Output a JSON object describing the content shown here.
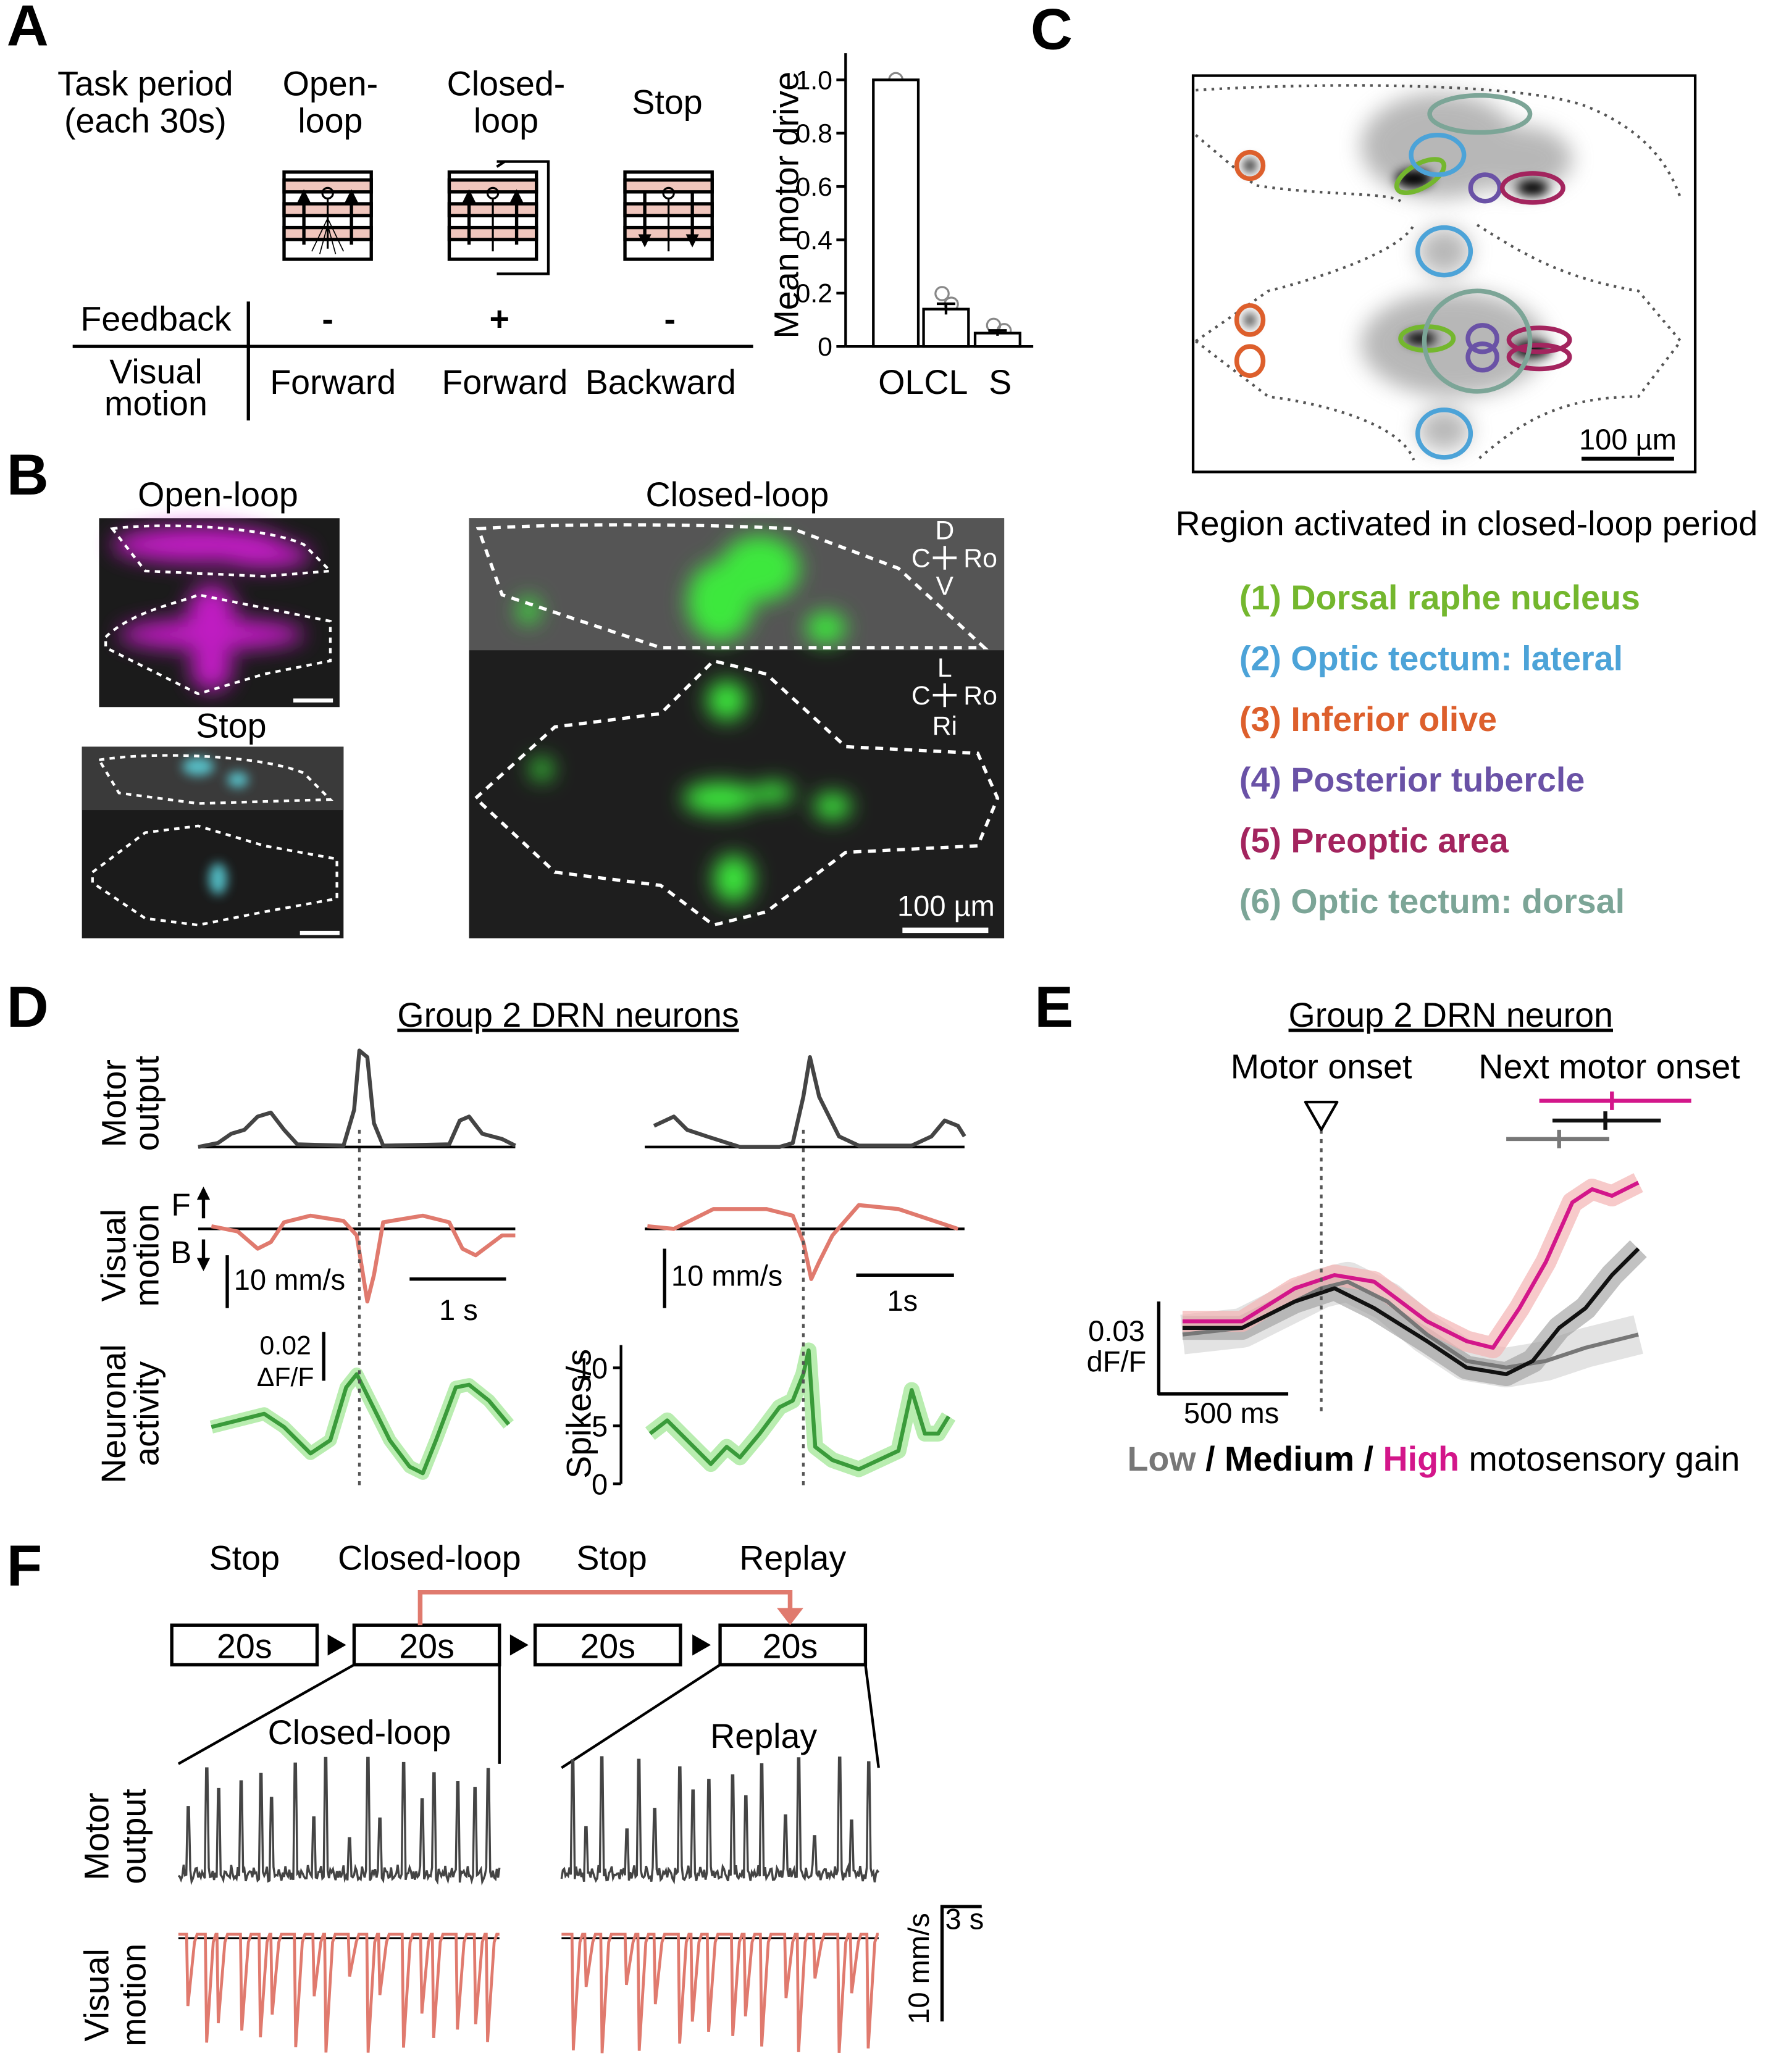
{
  "chart_data": {
    "type": "bar",
    "y_label": "Mean motor drive",
    "categories": [
      "OL",
      "CL",
      "S"
    ],
    "values": [
      1,
      0.14,
      0.05
    ],
    "errors": [
      null,
      0.02,
      0.01
    ],
    "color": "#ffffff",
    "ylim": [
      0,
      1.1
    ],
    "yticks": [
      0,
      0.2,
      0.4,
      0.6,
      0.8,
      {
        "value": 1,
        "label": "1.0"
      }
    ]
  },
  "panel_a": {
    "letter": "A",
    "task_period": [
      "Task period",
      "(each 30s)"
    ],
    "periods": [
      [
        "Open-",
        "loop"
      ],
      [
        "Closed-",
        "loop"
      ],
      [
        "Stop"
      ]
    ],
    "feedback_label": "Feedback",
    "feedback": [
      "-",
      "+",
      "-"
    ],
    "visual_label": [
      "Visual",
      "motion"
    ],
    "visual": [
      "Forward",
      "Forward",
      "Backward"
    ]
  },
  "panel_b": {
    "letter": "B",
    "open_loop": "Open-loop",
    "stop": "Stop",
    "closed_loop": "Closed-loop",
    "axes_side": [
      "D",
      "C",
      "Ro",
      "V"
    ],
    "axes_top": [
      "L",
      "C",
      "Ro",
      "Ri"
    ],
    "scale": "100 µm"
  },
  "panel_c": {
    "letter": "C",
    "scale": "100 µm",
    "caption": "Region activated in closed-loop period",
    "regions": [
      {
        "label": "(1) Dorsal raphe nucleus",
        "color": "#74b72e"
      },
      {
        "label": "(2) Optic tectum: lateral",
        "color": "#4ca3d8"
      },
      {
        "label": "(3) Inferior olive",
        "color": "#dd5f2c"
      },
      {
        "label": "(4) Posterior tubercle",
        "color": "#6a52a6"
      },
      {
        "label": "(5) Preoptic area",
        "color": "#a3245e"
      },
      {
        "label": "(6) Optic tectum: dorsal",
        "color": "#7ca597"
      }
    ]
  },
  "panel_d": {
    "letter": "D",
    "title": "Group 2 DRN neurons",
    "motor_label": [
      "Motor",
      "output"
    ],
    "visual_label": [
      "Visual",
      "motion"
    ],
    "activity_label": [
      "Neuronal",
      "activity"
    ],
    "forward": "F",
    "backward": "B",
    "left_speed_scale": "10 mm/s",
    "left_time_scale": "1 s",
    "df_scale": [
      "0.02",
      "ΔF/F"
    ],
    "right_speed_scale": "10 mm/s",
    "right_time_scale": "1s",
    "spikes_label": "Spikes/s",
    "spikes_ylim": [
      0,
      11.5
    ],
    "spikes_ticks": [
      0,
      5,
      10
    ]
  },
  "panel_e": {
    "letter": "E",
    "title": "Group 2 DRN neuron",
    "motor_onset": "Motor onset",
    "next_motor_onset": "Next motor onset",
    "df_scale": [
      "0.03",
      "dF/F"
    ],
    "time_scale": "500 ms",
    "legend": [
      {
        "text": "Low",
        "color": "#777777"
      },
      {
        "text": " / ",
        "color": "#000000"
      },
      {
        "text": "Medium",
        "color": "#000000"
      },
      {
        "text": " / ",
        "color": "#000000"
      },
      {
        "text": "High",
        "color": "#d3168a"
      },
      {
        "text": " motosensory gain",
        "color": "#000000"
      }
    ]
  },
  "panel_f": {
    "letter": "F",
    "periods": [
      "Stop",
      "Closed-loop",
      "Stop",
      "Replay"
    ],
    "durations": [
      "20s",
      "20s",
      "20s",
      "20s"
    ],
    "zoom_labels": [
      "Closed-loop",
      "Replay"
    ],
    "motor_label": [
      "Motor",
      "output"
    ],
    "visual_label": [
      "Visual",
      "motion"
    ],
    "time_scale": "3 s",
    "speed_scale": "10 mm/s"
  }
}
